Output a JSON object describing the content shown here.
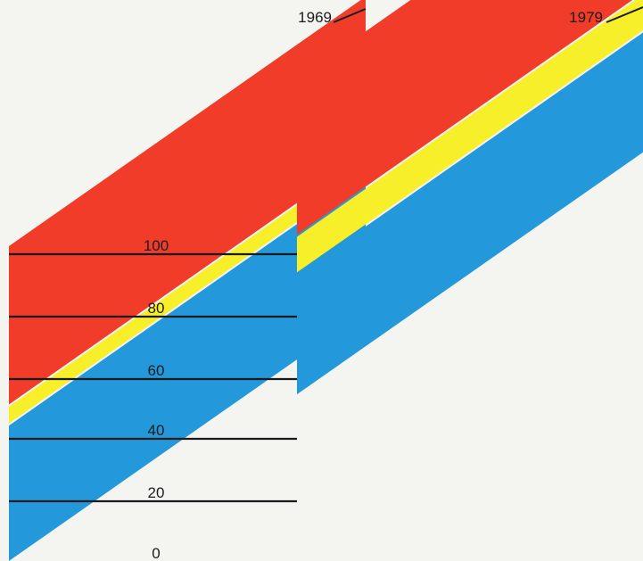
{
  "chart_data": {
    "type": "area",
    "chart_style": "oblique stacked bands (3D perspective), share in percent",
    "y_ticks": [
      "0",
      "20",
      "40",
      "60",
      "80",
      "100"
    ],
    "ylim": [
      0,
      100
    ],
    "grid": true,
    "x": [
      "1969",
      "1979"
    ],
    "series": [
      {
        "color_name": "blue",
        "color": "#2398da",
        "values": [
          43,
          38
        ]
      },
      {
        "color_name": "yellow",
        "color": "#f7ef2a",
        "values": [
          6,
          12
        ]
      },
      {
        "color_name": "red",
        "color": "#f03c28",
        "values": [
          51,
          50
        ]
      }
    ]
  }
}
